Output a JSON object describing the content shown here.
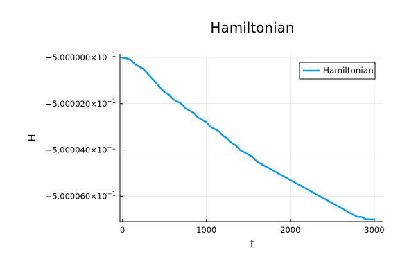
{
  "chart_data": {
    "type": "line",
    "title": "Hamiltonian",
    "xlabel": "t",
    "ylabel": "H",
    "xlim": [
      -30,
      3100
    ],
    "ylim": [
      -0.5000071,
      -0.49999985
    ],
    "x_ticks": [
      0,
      1000,
      2000,
      3000
    ],
    "x_tick_labels": [
      "0",
      "1000",
      "2000",
      "3000"
    ],
    "y_ticks": [
      -0.5,
      -0.500002,
      -0.500004,
      -0.500006
    ],
    "y_tick_mantissas": [
      "−5.000000×10",
      "−5.000020×10",
      "−5.000040×10",
      "−5.000060×10"
    ],
    "y_tick_exponent": "−1",
    "grid": true,
    "legend_position": "top-right",
    "series": [
      {
        "name": "Hamiltonian",
        "color": "#009af9",
        "x": [
          0,
          50,
          100,
          150,
          200,
          250,
          300,
          350,
          400,
          450,
          500,
          550,
          600,
          650,
          700,
          750,
          800,
          850,
          900,
          950,
          1000,
          1050,
          1100,
          1150,
          1200,
          1250,
          1300,
          1350,
          1400,
          1450,
          1500,
          1550,
          1600,
          1650,
          1700,
          1750,
          1800,
          1850,
          1900,
          1950,
          2000,
          2050,
          2100,
          2150,
          2200,
          2250,
          2300,
          2350,
          2400,
          2450,
          2500,
          2550,
          2600,
          2650,
          2700,
          2750,
          2800,
          2850,
          2900,
          2950,
          3000
        ],
        "values": [
          -0.50000001,
          -0.50000004,
          -0.5000001,
          -0.5000003,
          -0.5000004,
          -0.5000005,
          -0.5000007,
          -0.5000009,
          -0.5000011,
          -0.5000013,
          -0.5000015,
          -0.5000016,
          -0.5000018,
          -0.5000019,
          -0.500002,
          -0.5000022,
          -0.5000023,
          -0.5000024,
          -0.5000026,
          -0.5000027,
          -0.5000028,
          -0.500003,
          -0.5000031,
          -0.5000032,
          -0.5000034,
          -0.5000035,
          -0.5000037,
          -0.5000038,
          -0.500004,
          -0.5000041,
          -0.5000042,
          -0.5000043,
          -0.5000045,
          -0.5000046,
          -0.5000047,
          -0.5000048,
          -0.5000049,
          -0.500005,
          -0.5000051,
          -0.5000052,
          -0.5000053,
          -0.5000054,
          -0.5000055,
          -0.5000056,
          -0.5000057,
          -0.5000058,
          -0.5000059,
          -0.500006,
          -0.5000061,
          -0.5000062,
          -0.5000063,
          -0.5000064,
          -0.5000065,
          -0.5000066,
          -0.5000067,
          -0.5000068,
          -0.5000069,
          -0.5000069,
          -0.500007,
          -0.500007,
          -0.500007
        ]
      }
    ]
  }
}
